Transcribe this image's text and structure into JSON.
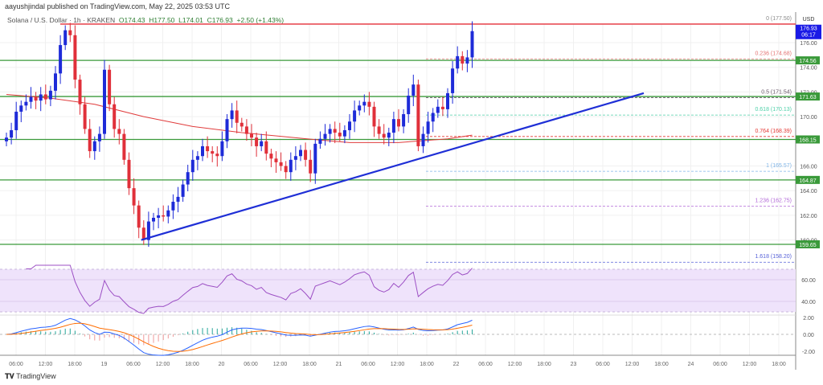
{
  "header": {
    "published": "aayushjindal published on TradingView.com, May 22, 2025 03:53 UTC",
    "symbol": "Solana / U.S. Dollar · 1h · KRAKEN",
    "open": "O174.43",
    "high": "H177.50",
    "low": "L174.01",
    "close": "C176.93",
    "change": "+2.50 (+1.43%)"
  },
  "logo": "TradingView",
  "chart_data": {
    "type": "candlestick",
    "title": "Solana / U.S. Dollar · 1h · KRAKEN",
    "currency": "USD",
    "ylim": [
      158.5,
      179
    ],
    "y_ticks": [
      "176.00",
      "174.00",
      "172.00",
      "170.00",
      "166.00",
      "164.00",
      "162.00",
      "160.00"
    ],
    "x_ticks": [
      "06:00",
      "12:00",
      "18:00",
      "19",
      "06:00",
      "12:00",
      "18:00",
      "20",
      "06:00",
      "12:00",
      "18:00",
      "21",
      "06:00",
      "12:00",
      "18:00",
      "22",
      "06:00",
      "12:00",
      "18:00",
      "23",
      "06:00",
      "12:00",
      "18:00",
      "24",
      "06:00",
      "12:00",
      "18:00"
    ],
    "first_open": 168.0,
    "close": [
      168.3,
      168.9,
      170.4,
      170.9,
      171.2,
      171.6,
      171.3,
      171.8,
      171.4,
      172.1,
      173.5,
      175.8,
      177.0,
      176.6,
      173.0,
      171.0,
      169.0,
      167.2,
      168.0,
      168.6,
      173.8,
      171.0,
      169.0,
      168.6,
      166.5,
      164.2,
      162.8,
      161.0,
      160.0,
      161.5,
      161.8,
      162.0,
      161.9,
      162.4,
      163.1,
      163.5,
      164.5,
      165.5,
      166.5,
      166.8,
      167.6,
      167.2,
      167.0,
      166.8,
      168.0,
      169.8,
      170.5,
      169.5,
      169.2,
      168.6,
      168.3,
      167.6,
      168.0,
      167.0,
      166.6,
      166.3,
      166.0,
      165.5,
      166.5,
      166.8,
      167.3,
      166.5,
      165.4,
      167.8,
      168.2,
      168.6,
      169.0,
      168.7,
      168.4,
      168.9,
      169.6,
      170.5,
      170.9,
      171.2,
      170.8,
      169.2,
      168.6,
      168.3,
      168.7,
      169.8,
      169.2,
      170.2,
      171.7,
      172.6,
      167.6,
      168.6,
      169.6,
      170.3,
      170.8,
      170.6,
      171.9,
      173.9,
      174.9,
      174.3,
      174.8,
      176.93
    ],
    "moving_average": [
      [
        0,
        171.8
      ],
      [
        9,
        171.5
      ],
      [
        18,
        171.0
      ],
      [
        28,
        170.0
      ],
      [
        38,
        169.2
      ],
      [
        48,
        168.7
      ],
      [
        56,
        168.4
      ],
      [
        64,
        168.1
      ],
      [
        70,
        167.9
      ],
      [
        80,
        167.9
      ],
      [
        90,
        168.2
      ],
      [
        95,
        168.5
      ]
    ],
    "support_lines": [
      {
        "label": "174.56",
        "value": 174.56
      },
      {
        "label": "171.63",
        "value": 171.63
      },
      {
        "label": "168.15",
        "value": 168.15
      },
      {
        "label": "164.87",
        "value": 164.87
      },
      {
        "label": "159.65",
        "value": 159.65
      }
    ],
    "resistance_line": {
      "value": 177.5
    },
    "current_price": {
      "label": "176.93",
      "timer": "06:17",
      "value": 176.93
    },
    "trendline": {
      "from": [
        27.5,
        160.0
      ],
      "to": [
        130,
        171.9
      ]
    },
    "fibonacci": [
      {
        "label": "0 (177.50)",
        "value": 177.5,
        "color": "#888888"
      },
      {
        "label": "0.236 (174.68)",
        "value": 174.68,
        "color": "#e57373"
      },
      {
        "label": "0.5 (171.54)",
        "value": 171.54,
        "color": "#6d5b6d"
      },
      {
        "label": "0.618 (170.13)",
        "value": 170.13,
        "color": "#4dd0a8"
      },
      {
        "label": "0.764 (168.39)",
        "value": 168.39,
        "color": "#e53935"
      },
      {
        "label": "1 (165.57)",
        "value": 165.57,
        "color": "#7fb5e8"
      },
      {
        "label": "1.236 (162.75)",
        "value": 162.75,
        "color": "#b36ad8"
      },
      {
        "label": "1.618 (158.20)",
        "value": 158.2,
        "color": "#5560d8"
      }
    ],
    "rsi_ticks": [
      "60.00",
      "40.00"
    ],
    "macd_ticks": [
      "2.00",
      "0.00",
      "-2.00"
    ],
    "colors": {
      "up": "#1e2bd8",
      "down": "#e0303a",
      "support": "#3a9a3a",
      "ma": "#e03c3c",
      "trend": "#1f2fd6"
    }
  }
}
